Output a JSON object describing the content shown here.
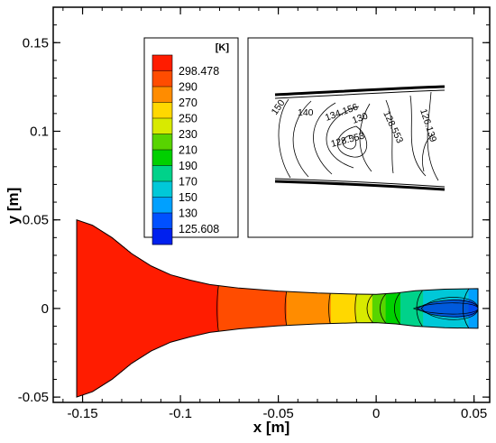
{
  "chart_data": {
    "type": "contour",
    "xlabel": "x [m]",
    "ylabel": "y [m]",
    "xlim": [
      -0.165,
      0.058
    ],
    "ylim": [
      -0.053,
      0.17
    ],
    "x_ticks": [
      "-0.15",
      "-0.1",
      "-0.05",
      "0",
      "0.05"
    ],
    "y_ticks": [
      "-0.05",
      "0",
      "0.05",
      "0.1",
      "0.15"
    ],
    "x_tick_values": [
      -0.15,
      -0.1,
      -0.05,
      0,
      0.05
    ],
    "y_tick_values": [
      -0.05,
      0,
      0.05,
      0.1,
      0.15
    ],
    "legend": {
      "unit": "[K]",
      "position": "top-left",
      "levels": [
        "298.478",
        "290",
        "270",
        "250",
        "230",
        "210",
        "190",
        "170",
        "150",
        "130",
        "125.608"
      ],
      "colors": [
        "#ff1c00",
        "#ff4c00",
        "#ff8c00",
        "#ffd800",
        "#d8ea00",
        "#58d400",
        "#00d000",
        "#00d28a",
        "#00c8d8",
        "#00a0ff",
        "#0050ff",
        "#0020ee"
      ]
    },
    "nozzle_upper_wall": [
      {
        "x": -0.153,
        "y": 0.05
      },
      {
        "x": -0.145,
        "y": 0.047
      },
      {
        "x": -0.135,
        "y": 0.04
      },
      {
        "x": -0.125,
        "y": 0.031
      },
      {
        "x": -0.115,
        "y": 0.024
      },
      {
        "x": -0.105,
        "y": 0.019
      },
      {
        "x": -0.095,
        "y": 0.016
      },
      {
        "x": -0.085,
        "y": 0.0135
      },
      {
        "x": -0.07,
        "y": 0.0115
      },
      {
        "x": -0.05,
        "y": 0.0098
      },
      {
        "x": -0.03,
        "y": 0.0087
      },
      {
        "x": -0.01,
        "y": 0.0081
      },
      {
        "x": 0,
        "y": 0.008
      },
      {
        "x": 0.01,
        "y": 0.0087
      },
      {
        "x": 0.02,
        "y": 0.01
      },
      {
        "x": 0.035,
        "y": 0.0109
      },
      {
        "x": 0.052,
        "y": 0.0112
      }
    ],
    "temperature_profile": [
      {
        "x": -0.153,
        "T": 298.478
      },
      {
        "x": -0.1,
        "T": 297
      },
      {
        "x": -0.085,
        "T": 292
      },
      {
        "x": -0.065,
        "T": 283
      },
      {
        "x": -0.053,
        "T": 275
      },
      {
        "x": -0.04,
        "T": 266
      },
      {
        "x": -0.028,
        "T": 255
      },
      {
        "x": -0.018,
        "T": 244
      },
      {
        "x": -0.01,
        "T": 230
      },
      {
        "x": -0.003,
        "T": 214
      },
      {
        "x": 0.003,
        "T": 196
      },
      {
        "x": 0.01,
        "T": 175
      },
      {
        "x": 0.017,
        "T": 160
      },
      {
        "x": 0.025,
        "T": 148
      },
      {
        "x": 0.035,
        "T": 138
      },
      {
        "x": 0.045,
        "T": 131
      },
      {
        "x": 0.052,
        "T": 128
      }
    ],
    "inset": {
      "contour_labels": [
        "150",
        "140",
        "134.156",
        "130",
        "128.553",
        "128.553",
        "126.139"
      ]
    }
  }
}
